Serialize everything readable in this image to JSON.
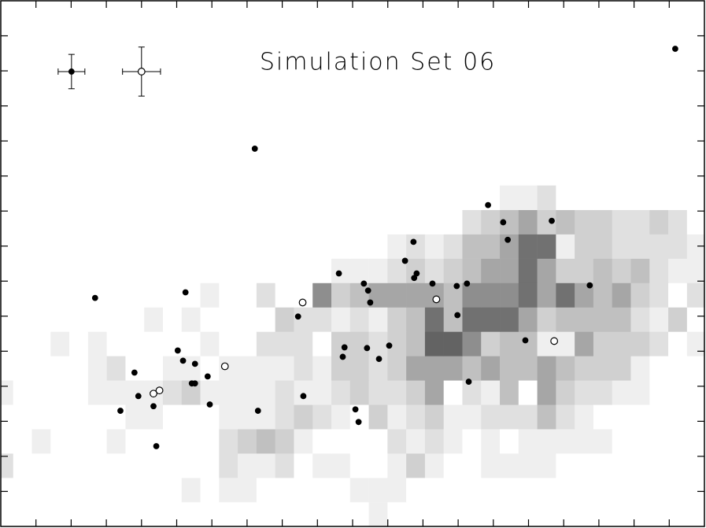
{
  "chart_data": {
    "type": "scatter",
    "title": "Simulation Set 06",
    "xlim": [
      0,
      20
    ],
    "ylim": [
      0,
      15
    ],
    "xticks": [
      1,
      2,
      3,
      4,
      5,
      6,
      7,
      8,
      9,
      10,
      11,
      12,
      13,
      14,
      15,
      16,
      17,
      18,
      19
    ],
    "yticks": [
      1,
      2,
      3,
      4,
      5,
      6,
      7,
      8,
      9,
      10,
      11,
      12,
      13,
      14
    ],
    "heatmap": {
      "x_start": -0.18,
      "x_step": 0.532,
      "y_start": 0,
      "y_step": 0.695,
      "colors": [
        "#ffffff",
        "#efefef",
        "#e0e0e0",
        "#d0d0d0",
        "#c0c0c0",
        "#a6a6a6",
        "#8e8e8e",
        "#717171",
        "#636363"
      ],
      "levels": [
        [
          0,
          0,
          0,
          0,
          0,
          0,
          0,
          0,
          0,
          0,
          0,
          0,
          0,
          0,
          0,
          0,
          0,
          0,
          0,
          0,
          1,
          0,
          0,
          0,
          0,
          0,
          0,
          0,
          0,
          0,
          0,
          0,
          0,
          0,
          0,
          0,
          0,
          0
        ],
        [
          0,
          0,
          0,
          0,
          0,
          0,
          0,
          0,
          0,
          0,
          1,
          0,
          1,
          1,
          0,
          0,
          0,
          0,
          0,
          1,
          1,
          1,
          0,
          0,
          0,
          0,
          0,
          0,
          0,
          0,
          0,
          0,
          0,
          0,
          0,
          0,
          0,
          0
        ],
        [
          2,
          0,
          0,
          0,
          0,
          0,
          0,
          0,
          0,
          0,
          0,
          0,
          2,
          1,
          1,
          2,
          0,
          1,
          1,
          0,
          0,
          1,
          3,
          1,
          0,
          0,
          1,
          1,
          1,
          1,
          0,
          0,
          0,
          0,
          0,
          0,
          0,
          0
        ],
        [
          0,
          0,
          1,
          0,
          0,
          0,
          1,
          0,
          0,
          0,
          0,
          0,
          2,
          3,
          4,
          3,
          1,
          0,
          0,
          0,
          0,
          2,
          1,
          2,
          1,
          0,
          1,
          0,
          1,
          1,
          1,
          1,
          1,
          0,
          0,
          0,
          0,
          0
        ],
        [
          0,
          0,
          0,
          0,
          0,
          0,
          0,
          1,
          1,
          0,
          0,
          0,
          1,
          1,
          1,
          2,
          3,
          2,
          1,
          0,
          3,
          1,
          2,
          3,
          1,
          1,
          2,
          2,
          2,
          4,
          2,
          1,
          0,
          0,
          0,
          0,
          0,
          0
        ],
        [
          1,
          0,
          0,
          0,
          0,
          1,
          1,
          1,
          1,
          2,
          3,
          1,
          1,
          1,
          1,
          2,
          1,
          1,
          2,
          3,
          2,
          2,
          3,
          5,
          0,
          2,
          1,
          4,
          0,
          5,
          3,
          2,
          2,
          1,
          1,
          0,
          0,
          0
        ],
        [
          0,
          0,
          0,
          0,
          0,
          1,
          2,
          0,
          0,
          1,
          1,
          0,
          1,
          1,
          1,
          1,
          2,
          1,
          3,
          3,
          2,
          3,
          5,
          5,
          5,
          4,
          5,
          4,
          4,
          5,
          4,
          3,
          3,
          3,
          1,
          0,
          0,
          0
        ],
        [
          0,
          0,
          0,
          1,
          0,
          1,
          0,
          0,
          0,
          0,
          0,
          1,
          0,
          0,
          2,
          2,
          2,
          0,
          3,
          3,
          2,
          3,
          4,
          8,
          8,
          6,
          3,
          4,
          4,
          1,
          1,
          5,
          3,
          3,
          3,
          2,
          0,
          1
        ],
        [
          0,
          0,
          0,
          0,
          0,
          0,
          0,
          0,
          1,
          0,
          1,
          0,
          0,
          0,
          0,
          3,
          2,
          2,
          1,
          2,
          1,
          3,
          4,
          7,
          4,
          7,
          7,
          7,
          5,
          3,
          4,
          4,
          4,
          4,
          2,
          1,
          3,
          0
        ],
        [
          0,
          0,
          0,
          0,
          0,
          0,
          0,
          0,
          0,
          0,
          0,
          1,
          0,
          0,
          2,
          0,
          0,
          6,
          3,
          4,
          5,
          5,
          5,
          5,
          4,
          6,
          6,
          6,
          7,
          5,
          7,
          5,
          4,
          5,
          3,
          2,
          0,
          2
        ],
        [
          0,
          0,
          0,
          0,
          0,
          0,
          0,
          0,
          0,
          0,
          0,
          0,
          0,
          0,
          0,
          0,
          0,
          0,
          1,
          1,
          1,
          2,
          3,
          2,
          3,
          4,
          5,
          5,
          7,
          5,
          3,
          3,
          4,
          3,
          4,
          2,
          1,
          1
        ],
        [
          0,
          0,
          0,
          0,
          0,
          0,
          0,
          0,
          0,
          0,
          0,
          0,
          0,
          0,
          0,
          0,
          0,
          0,
          0,
          0,
          0,
          1,
          2,
          1,
          2,
          4,
          4,
          5,
          7,
          7,
          1,
          3,
          3,
          2,
          2,
          2,
          2,
          1
        ],
        [
          0,
          0,
          0,
          0,
          0,
          0,
          0,
          0,
          0,
          0,
          0,
          0,
          0,
          0,
          0,
          0,
          0,
          0,
          0,
          0,
          0,
          0,
          0,
          0,
          0,
          2,
          3,
          4,
          5,
          3,
          4,
          3,
          3,
          2,
          2,
          3,
          2,
          0
        ],
        [
          0,
          0,
          0,
          0,
          0,
          0,
          0,
          0,
          0,
          0,
          0,
          0,
          0,
          0,
          0,
          0,
          0,
          0,
          0,
          0,
          0,
          0,
          0,
          0,
          0,
          0,
          0,
          1,
          1,
          2,
          0,
          0,
          0,
          0,
          0,
          0,
          0,
          0
        ]
      ]
    },
    "series": [
      {
        "marker": "filled",
        "color": "#000000",
        "x": [
          19.17,
          7.22,
          2.68,
          5.25,
          9.61,
          10.32,
          10.44,
          10.5,
          11.73,
          11.49,
          11.82,
          11.75,
          12.27,
          12.96,
          13.25,
          13.85,
          14.28,
          14.41,
          15.66,
          16.74,
          8.45,
          9.77,
          9.72,
          10.41,
          10.75,
          11.04,
          12.98,
          14.91,
          13.3,
          5.03,
          5.18,
          5.52,
          5.43,
          5.52,
          5.88,
          3.8,
          3.91,
          3.4,
          4.34,
          4.42,
          5.94,
          7.31,
          8.6,
          10.08,
          10.17
        ],
        "y": [
          13.63,
          10.78,
          6.52,
          6.68,
          7.22,
          6.93,
          6.73,
          6.39,
          8.12,
          7.58,
          7.22,
          7.09,
          6.93,
          6.86,
          6.93,
          9.17,
          8.68,
          8.18,
          8.72,
          6.88,
          5.99,
          5.11,
          4.84,
          5.09,
          4.78,
          5.16,
          6.03,
          5.31,
          4.13,
          5.02,
          4.73,
          4.64,
          4.08,
          4.08,
          4.28,
          4.39,
          3.72,
          3.3,
          3.43,
          2.29,
          3.48,
          3.3,
          3.72,
          3.34,
          2.98
        ]
      },
      {
        "marker": "open",
        "color": "#000000",
        "x": [
          8.58,
          12.38,
          6.37,
          4.34,
          4.51,
          15.73
        ],
        "y": [
          6.39,
          6.48,
          4.57,
          3.79,
          3.88,
          5.29
        ]
      }
    ],
    "error_bars": [
      {
        "marker": "filled",
        "x": 2.01,
        "y": 12.98,
        "xerr": 0.38,
        "yerr": 0.49
      },
      {
        "marker": "open",
        "x": 4.0,
        "y": 12.98,
        "xerr": 0.54,
        "yerr": 0.7
      }
    ]
  }
}
